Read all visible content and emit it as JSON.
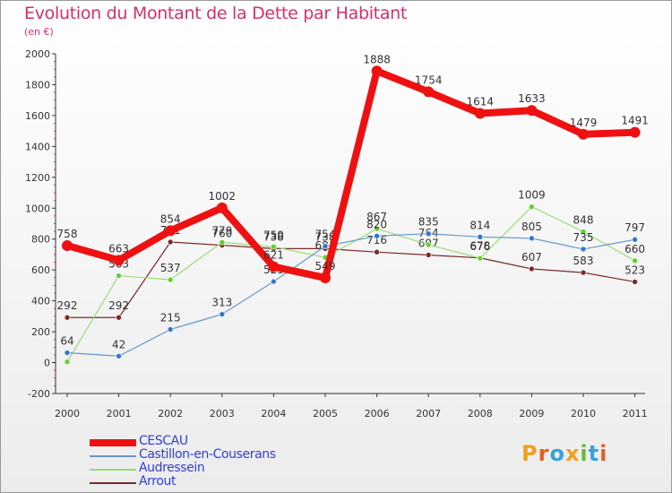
{
  "title": "Evolution du Montant de la Dette par Habitant",
  "subtitle": "(en €)",
  "logo": {
    "text": "Proxiti",
    "letters": [
      {
        "ch": "P",
        "color": "#f0a020"
      },
      {
        "ch": "r",
        "color": "#e06020"
      },
      {
        "ch": "o",
        "color": "#3aa0d8"
      },
      {
        "ch": "x",
        "color": "#f0a020"
      },
      {
        "ch": "i",
        "color": "#6cb83a"
      },
      {
        "ch": "t",
        "color": "#3aa0d8"
      },
      {
        "ch": "i",
        "color": "#e06020"
      }
    ]
  },
  "chart_data": {
    "type": "line",
    "x": [
      "2000",
      "2001",
      "2002",
      "2003",
      "2004",
      "2005",
      "2006",
      "2007",
      "2008",
      "2009",
      "2010",
      "2011"
    ],
    "ylim": [
      -200,
      2000
    ],
    "yticks": [
      -200,
      0,
      200,
      400,
      600,
      800,
      1000,
      1200,
      1400,
      1600,
      1800,
      2000
    ],
    "grid": false,
    "legend": "bottom-left",
    "series": [
      {
        "name": "Arrout",
        "color": "#7a2a2a",
        "marker": "#7a2a2a",
        "width": 1.2,
        "values": [
          292,
          292,
          781,
          760,
          738,
          738,
          716,
          697,
          678,
          607,
          583,
          523
        ],
        "labels": [
          "292",
          "292",
          "781",
          "760",
          "738",
          "738",
          "716",
          "697",
          "678",
          "607",
          "583",
          "523"
        ]
      },
      {
        "name": "Audressein",
        "color": "#99dd77",
        "marker": "#66cc33",
        "width": 1.2,
        "values": [
          5,
          563,
          537,
          779,
          750,
          681,
          867,
          764,
          676,
          1009,
          848,
          660
        ],
        "labels": [
          "",
          "563",
          "537",
          "779",
          "750",
          "681",
          "867",
          "764",
          "676",
          "1009",
          "848",
          "660"
        ]
      },
      {
        "name": "Castillon-en-Couserans",
        "color": "#6699cc",
        "marker": "#3377cc",
        "width": 1.2,
        "values": [
          64,
          42,
          215,
          313,
          525,
          754,
          820,
          835,
          814,
          805,
          735,
          797
        ],
        "labels": [
          "64",
          "42",
          "215",
          "313",
          "525",
          "754",
          "820",
          "835",
          "814",
          "805",
          "735",
          "797"
        ]
      },
      {
        "name": "CESCAU",
        "color": "#ee1111",
        "marker": "#ee1111",
        "width": 8,
        "values": [
          758,
          663,
          854,
          1002,
          621,
          549,
          1888,
          1754,
          1614,
          1633,
          1479,
          1491
        ],
        "labels": [
          "758",
          "663",
          "854",
          "1002",
          "621",
          "549",
          "1888",
          "1754",
          "1614",
          "1633",
          "1479",
          "1491"
        ]
      }
    ],
    "legend_order": [
      "CESCAU",
      "Castillon-en-Couserans",
      "Audressein",
      "Arrout"
    ]
  }
}
